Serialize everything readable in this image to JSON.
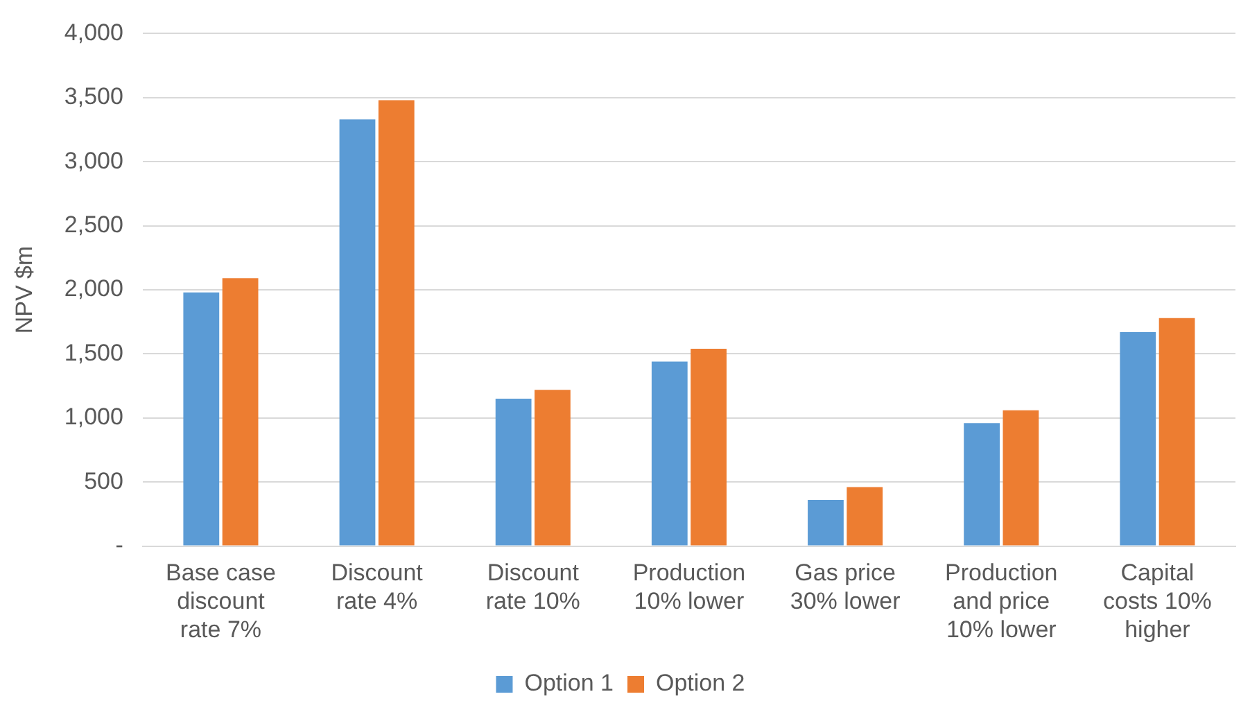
{
  "chart_data": {
    "type": "bar",
    "ylabel": "NPV $m",
    "categories": [
      "Base case discount rate 7%",
      "Discount rate 4%",
      "Discount rate 10%",
      "Production 10% lower",
      "Gas price 30% lower",
      "Production and price 10% lower",
      "Capital costs 10% higher"
    ],
    "series": [
      {
        "name": "Option 1",
        "color": "#5b9bd5",
        "values": [
          1980,
          3330,
          1150,
          1440,
          360,
          960,
          1670
        ]
      },
      {
        "name": "Option 2",
        "color": "#ed7d31",
        "values": [
          2090,
          3480,
          1220,
          1540,
          460,
          1060,
          1780
        ]
      }
    ],
    "ylim": [
      0,
      4000
    ],
    "yticks": [
      {
        "value": 0,
        "label": "-"
      },
      {
        "value": 500,
        "label": "500"
      },
      {
        "value": 1000,
        "label": "1,000"
      },
      {
        "value": 1500,
        "label": "1,500"
      },
      {
        "value": 2000,
        "label": "2,000"
      },
      {
        "value": 2500,
        "label": "2,500"
      },
      {
        "value": 3000,
        "label": "3,000"
      },
      {
        "value": 3500,
        "label": "3,500"
      },
      {
        "value": 4000,
        "label": "4,000"
      }
    ],
    "grid": "y",
    "legend": "bottom"
  }
}
